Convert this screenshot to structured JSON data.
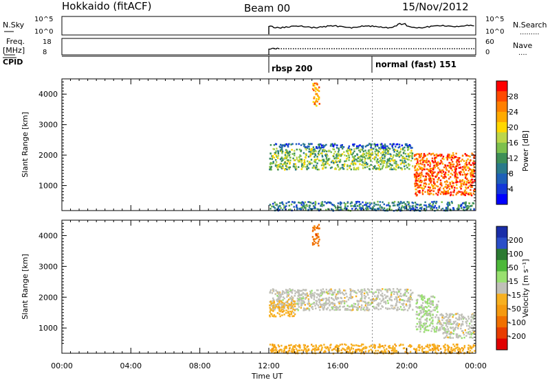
{
  "header": {
    "station": "Hokkaido (fitACF)",
    "beam": "Beam 00",
    "date": "15/Nov/2012"
  },
  "panels": {
    "nsky_label": "N.Sky",
    "nsky_ticks": [
      "10^5",
      "10^0"
    ],
    "nsearch_label": "N.Search",
    "nsearch_ticks": [
      "10^5",
      "10^0"
    ],
    "freq_label": "Freq.",
    "freq_unit": "[MHz]",
    "freq_ticks": [
      "18",
      "8"
    ],
    "nave_label": "Nave",
    "nave_ticks": [
      "60",
      "0"
    ],
    "cpid_label": "CPID",
    "cpid_modes": [
      "rbsp 200",
      "normal (fast) 151"
    ]
  },
  "colorbars": {
    "power": {
      "label": "Power [dB]",
      "ticks": [
        "28",
        "24",
        "20",
        "16",
        "12",
        "8",
        "4"
      ],
      "colors": [
        "#ff0000",
        "#ff4a00",
        "#ff7f00",
        "#ffaa00",
        "#ffd700",
        "#bcd64a",
        "#7dc04d",
        "#3e8f57",
        "#2a7a8a",
        "#1e60b8",
        "#1438d8",
        "#0000ff"
      ]
    },
    "velocity": {
      "label": "Velocity [m s⁻¹]",
      "ticks": [
        "200",
        "100",
        "50",
        "15",
        "-15",
        "-50",
        "-100",
        "-200"
      ],
      "colors": [
        "#1a2ea8",
        "#2a4ec8",
        "#2b7a32",
        "#4db83a",
        "#99e070",
        "#c0c0b8",
        "#f7b020",
        "#f59a10",
        "#f07000",
        "#e83c00",
        "#e00000"
      ]
    }
  },
  "chart_data": [
    {
      "type": "heatmap",
      "title": "Power",
      "xlabel": "Time UT",
      "ylabel": "Slant Range [km]",
      "x_ticks": [
        "00:00",
        "04:00",
        "08:00",
        "12:00",
        "16:00",
        "20:00",
        "00:00"
      ],
      "xlim": [
        0,
        24
      ],
      "y_ticks": [
        4000,
        3000,
        2000,
        1000
      ],
      "ylim": [
        180,
        4500
      ],
      "data_start_hour": 12,
      "regions": [
        {
          "t": [
            12,
            20.3
          ],
          "r": [
            1550,
            2250
          ],
          "value": 14
        },
        {
          "t": [
            12,
            20.3
          ],
          "r": [
            2250,
            2400
          ],
          "value": 6
        },
        {
          "t": [
            12,
            23.9
          ],
          "r": [
            200,
            500
          ],
          "value": 8
        },
        {
          "t": [
            20.4,
            23.9
          ],
          "r": [
            700,
            2100
          ],
          "value": 26
        },
        {
          "t": [
            14.5,
            14.9
          ],
          "r": [
            3600,
            4400
          ],
          "value": 22
        }
      ]
    },
    {
      "type": "heatmap",
      "title": "Velocity",
      "xlabel": "Time UT",
      "ylabel": "Slant Range [km]",
      "x_ticks": [
        "00:00",
        "04:00",
        "08:00",
        "12:00",
        "16:00",
        "20:00",
        "00:00"
      ],
      "xlim": [
        0,
        24
      ],
      "y_ticks": [
        4000,
        3000,
        2000,
        1000
      ],
      "ylim": [
        180,
        4500
      ],
      "data_start_hour": 12,
      "regions": [
        {
          "t": [
            12,
            20.3
          ],
          "r": [
            1600,
            2300
          ],
          "value": 0
        },
        {
          "t": [
            12,
            13.5
          ],
          "r": [
            1400,
            1900
          ],
          "value": -50
        },
        {
          "t": [
            12,
            23.9
          ],
          "r": [
            200,
            500
          ],
          "value": -60
        },
        {
          "t": [
            20.5,
            21.8
          ],
          "r": [
            900,
            2100
          ],
          "value": 30
        },
        {
          "t": [
            21.8,
            23.9
          ],
          "r": [
            700,
            1500
          ],
          "value": 0
        },
        {
          "t": [
            14.5,
            14.9
          ],
          "r": [
            3700,
            4400
          ],
          "value": -150
        }
      ]
    }
  ]
}
